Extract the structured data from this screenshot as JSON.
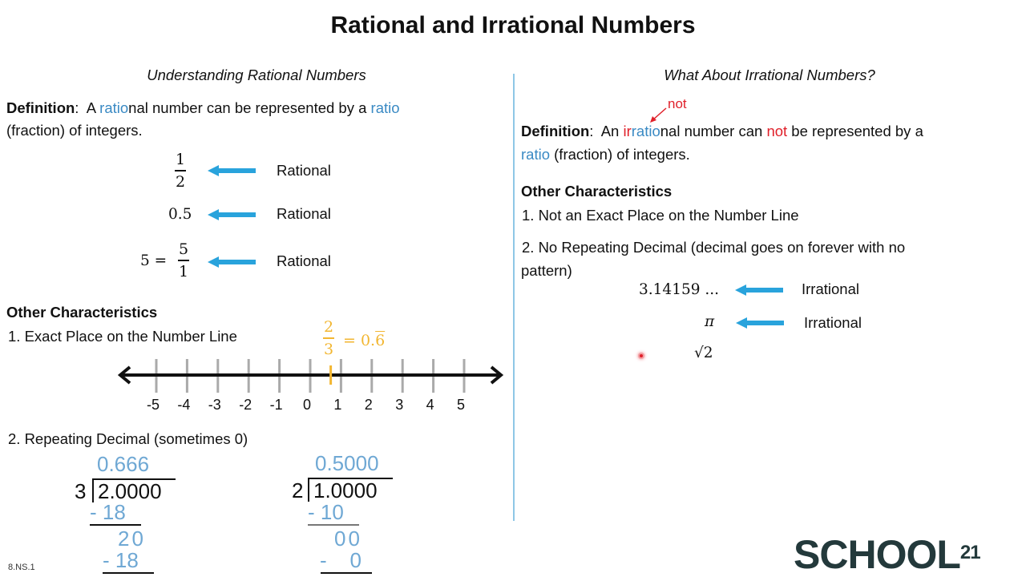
{
  "title": "Rational and Irrational Numbers",
  "left": {
    "subtitle": "Understanding Rational Numbers",
    "definition": {
      "label": "Definition",
      "colon": ":",
      "p1": "A ",
      "w1": "ratio",
      "p2": "nal number can be represented by a ",
      "w2": "ratio",
      "line2": "(fraction) of integers."
    },
    "examples": [
      {
        "num": "1",
        "den": "2",
        "label": "Rational"
      },
      {
        "value": "0.5",
        "label": "Rational"
      },
      {
        "lhs": "5 =",
        "num": "5",
        "den": "1",
        "label": "Rational"
      }
    ],
    "other_heading": "Other Characteristics",
    "item1": "1.  Exact Place on the Number Line",
    "annotation": {
      "num": "2",
      "den": "3",
      "eq": "= 0.",
      "rep": "6"
    },
    "number_line": {
      "ticks": [
        "-5",
        "-4",
        "-3",
        "-2",
        "-1",
        "0",
        "1",
        "2",
        "3",
        "4",
        "5"
      ],
      "marker_value": 0.667
    },
    "item2": "2.  Repeating Decimal (sometimes 0)",
    "division1": {
      "quotient": "0.666",
      "divisor": "3",
      "dividend": "2.0000",
      "s1": "- 18",
      "r1": "20",
      "s2": "- 18"
    },
    "division2": {
      "quotient": "0.5000",
      "divisor": "2",
      "dividend": "1.0000",
      "s1": "- 10",
      "r1": "00",
      "s2": "-    0"
    },
    "standard": "8.NS.1"
  },
  "right": {
    "subtitle": "What About Irrational Numbers?",
    "note": "not",
    "definition": {
      "label": "Definition",
      "colon": ":",
      "p1": "An ",
      "w0": "ir",
      "w1": "ratio",
      "p2": "nal number can ",
      "w2": "not",
      "p3": " be represented by a",
      "w3": "ratio",
      "line2": " (fraction) of integers."
    },
    "other_heading": "Other Characteristics",
    "item1": "1.  Not an Exact Place on the Number Line",
    "item2a": "2.  No Repeating Decimal (decimal goes on forever with no",
    "item2b": "pattern)",
    "examples": [
      {
        "value": "3.14159 ...",
        "label": "Irrational"
      },
      {
        "value": "π",
        "label": "Irrational"
      },
      {
        "value": "√2"
      }
    ]
  },
  "logo": {
    "text": "SCHOOL",
    "sup": "21"
  },
  "colors": {
    "accent_blue": "#3a8ac4",
    "arrow_blue": "#29a3dc",
    "red": "#e0202a",
    "orange": "#f2b631",
    "logo": "#23393b"
  }
}
